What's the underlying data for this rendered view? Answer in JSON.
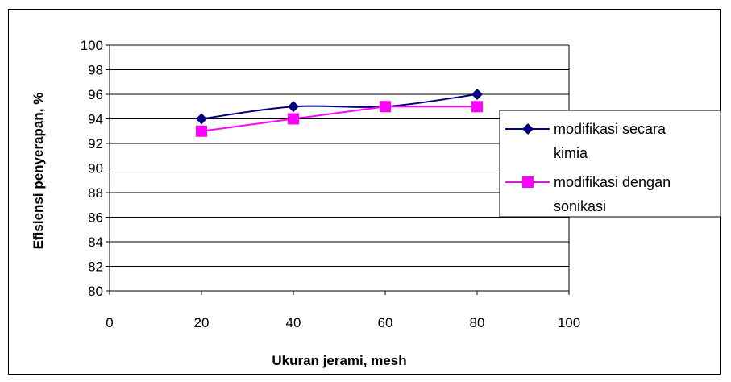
{
  "chart_data": {
    "type": "line",
    "title": "",
    "xlabel": "Ukuran jerami, mesh",
    "ylabel": "Efisiensi penyerapan, %",
    "xlim": [
      0,
      100
    ],
    "ylim": [
      80,
      100
    ],
    "x_ticks": [
      "0",
      "20",
      "40",
      "60",
      "80",
      "100"
    ],
    "y_ticks": [
      "80",
      "82",
      "84",
      "86",
      "88",
      "90",
      "92",
      "94",
      "96",
      "98",
      "100"
    ],
    "grid": "horizontal",
    "legend_position": "right",
    "series": [
      {
        "name_lines": [
          "modifikasi secara",
          "kimia"
        ],
        "color": "#000080",
        "marker": "diamond",
        "smooth": true,
        "x": [
          20,
          40,
          60,
          80
        ],
        "y": [
          94,
          95,
          95,
          96
        ]
      },
      {
        "name_lines": [
          "modifikasi dengan",
          "sonikasi"
        ],
        "color": "#ff00ff",
        "marker": "square",
        "smooth": false,
        "x": [
          20,
          40,
          60,
          80
        ],
        "y": [
          93,
          94,
          95,
          95
        ]
      }
    ]
  }
}
